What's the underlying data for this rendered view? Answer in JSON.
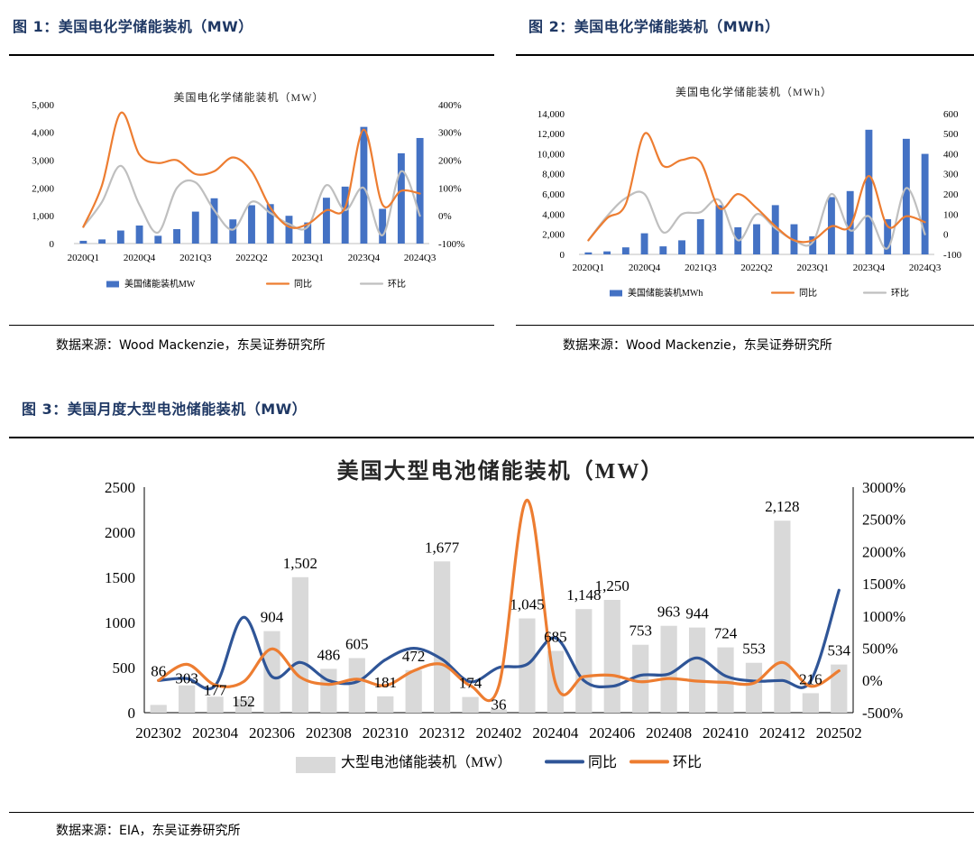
{
  "figures": [
    {
      "title": "图 1：美国电化学储能装机（MW）",
      "source": "数据来源：Wood Mackenzie，东吴证券研究所"
    },
    {
      "title": "图 2：美国电化学储能装机（MWh）",
      "source": "数据来源：Wood Mackenzie，东吴证券研究所"
    },
    {
      "title": "图 3：美国月度大型电池储能装机（MW）",
      "source": "数据来源：EIA，东吴证券研究所"
    }
  ],
  "chart_data": [
    {
      "type": "bar",
      "title": "美国电化学储能装机（MW）",
      "categories": [
        "2020Q1",
        "2020Q2",
        "2020Q3",
        "2020Q4",
        "2021Q1",
        "2021Q2",
        "2021Q3",
        "2021Q4",
        "2022Q1",
        "2022Q2",
        "2022Q3",
        "2022Q4",
        "2023Q1",
        "2023Q2",
        "2023Q3",
        "2023Q4",
        "2024Q1",
        "2024Q2",
        "2024Q3"
      ],
      "x_tick_labels": [
        "2020Q1",
        "2020Q4",
        "2021Q3",
        "2022Q2",
        "2023Q1",
        "2023Q4",
        "2024Q3"
      ],
      "y_ticks_left": [
        "0",
        "1,000",
        "2,000",
        "3,000",
        "4,000",
        "5,000"
      ],
      "y_ticks_right": [
        "-100%",
        "0%",
        "100%",
        "200%",
        "300%",
        "400%"
      ],
      "ylim_left": [
        0,
        5000
      ],
      "ylim_right": [
        -100,
        400
      ],
      "legend_position": "bottom",
      "colors": {
        "bar": "#4472c4",
        "yoy": "#ed7d31",
        "qoq": "#bfbfbf"
      },
      "series": [
        {
          "name": "美国储能装机MW",
          "kind": "bar",
          "axis": "left",
          "values": [
            100,
            150,
            470,
            650,
            280,
            520,
            1150,
            1630,
            870,
            1380,
            1420,
            1000,
            760,
            1650,
            2050,
            4200,
            1250,
            3250,
            3800
          ]
        },
        {
          "name": "同比",
          "kind": "line",
          "axis": "right",
          "values": [
            -40,
            110,
            370,
            220,
            190,
            200,
            150,
            160,
            210,
            160,
            30,
            -40,
            -30,
            20,
            30,
            310,
            40,
            90,
            80
          ]
        },
        {
          "name": "环比",
          "kind": "line",
          "axis": "right",
          "values": [
            -40,
            50,
            180,
            40,
            -60,
            100,
            120,
            20,
            -50,
            50,
            10,
            -30,
            -40,
            110,
            20,
            100,
            -70,
            160,
            0
          ]
        }
      ]
    },
    {
      "type": "bar",
      "title": "美国电化学储能装机（MWh）",
      "categories": [
        "2020Q1",
        "2020Q2",
        "2020Q3",
        "2020Q4",
        "2021Q1",
        "2021Q2",
        "2021Q3",
        "2021Q4",
        "2022Q1",
        "2022Q2",
        "2022Q3",
        "2022Q4",
        "2023Q1",
        "2023Q2",
        "2023Q3",
        "2023Q4",
        "2024Q1",
        "2024Q2",
        "2024Q3"
      ],
      "x_tick_labels": [
        "2020Q1",
        "2020Q4",
        "2021Q3",
        "2022Q2",
        "2023Q1",
        "2023Q4",
        "2024Q3"
      ],
      "y_ticks_left": [
        "0",
        "2,000",
        "4,000",
        "6,000",
        "8,000",
        "10,000",
        "12,000",
        "14,000"
      ],
      "y_ticks_right": [
        "-100",
        "0",
        "100",
        "200",
        "300",
        "400",
        "500",
        "600"
      ],
      "ylim_left": [
        0,
        14000
      ],
      "ylim_right": [
        -100,
        600
      ],
      "legend_position": "bottom",
      "colors": {
        "bar": "#4472c4",
        "yoy": "#ed7d31",
        "qoq": "#bfbfbf"
      },
      "series": [
        {
          "name": "美国储能装机MWh",
          "kind": "bar",
          "axis": "left",
          "values": [
            200,
            300,
            700,
            2100,
            800,
            1400,
            3500,
            4900,
            2700,
            3000,
            4900,
            3000,
            1800,
            5700,
            6300,
            12400,
            3500,
            11500,
            10000
          ]
        },
        {
          "name": "同比",
          "kind": "line",
          "axis": "right",
          "values": [
            -30,
            80,
            150,
            500,
            340,
            370,
            360,
            130,
            200,
            130,
            40,
            -30,
            -30,
            40,
            40,
            290,
            40,
            90,
            60
          ]
        },
        {
          "name": "环比",
          "kind": "line",
          "axis": "right",
          "values": [
            -30,
            90,
            180,
            200,
            10,
            100,
            110,
            170,
            -30,
            100,
            30,
            -30,
            -40,
            200,
            20,
            90,
            -70,
            230,
            0
          ]
        }
      ]
    },
    {
      "type": "bar",
      "title": "美国大型电池储能装机（MW）",
      "categories": [
        "202302",
        "202303",
        "202304",
        "202305",
        "202306",
        "202307",
        "202308",
        "202309",
        "202310",
        "202311",
        "202312",
        "202401",
        "202402",
        "202403",
        "202404",
        "202405",
        "202406",
        "202407",
        "202408",
        "202409",
        "202410",
        "202411",
        "202412",
        "202501",
        "202502"
      ],
      "x_tick_labels": [
        "202302",
        "202304",
        "202306",
        "202308",
        "202310",
        "202312",
        "202402",
        "202404",
        "202406",
        "202408",
        "202410",
        "202412",
        "202502"
      ],
      "y_ticks_left": [
        "0",
        "500",
        "1000",
        "1500",
        "2000",
        "2500"
      ],
      "y_ticks_right": [
        "-500%",
        "0%",
        "500%",
        "1000%",
        "1500%",
        "2000%",
        "2500%",
        "3000%"
      ],
      "ylim_left": [
        0,
        2500
      ],
      "ylim_right": [
        -500,
        3000
      ],
      "legend_position": "bottom",
      "colors": {
        "bar": "#d9d9d9",
        "yoy": "#2f5597",
        "qoq": "#ed7d31"
      },
      "series": [
        {
          "name": "大型电池储能装机（MW）",
          "kind": "bar",
          "axis": "left",
          "values": [
            86,
            303,
            177,
            152,
            904,
            1502,
            486,
            605,
            181,
            472,
            1677,
            174,
            36,
            1045,
            685,
            1148,
            1250,
            753,
            963,
            944,
            724,
            553,
            2128,
            216,
            534
          ]
        },
        {
          "name": "同比",
          "kind": "line",
          "axis": "right",
          "values": [
            0,
            30,
            -80,
            980,
            60,
            280,
            0,
            -20,
            320,
            500,
            330,
            -20,
            200,
            250,
            660,
            0,
            -90,
            80,
            100,
            350,
            70,
            -10,
            0,
            -10,
            1400
          ]
        },
        {
          "name": "环比",
          "kind": "line",
          "axis": "right",
          "values": [
            0,
            250,
            -70,
            -20,
            490,
            50,
            -60,
            20,
            -80,
            150,
            250,
            -80,
            -90,
            2800,
            -40,
            60,
            80,
            -20,
            30,
            -10,
            -30,
            -40,
            280,
            -90,
            150
          ]
        }
      ],
      "data_labels": [
        "86",
        "303",
        "177",
        "152",
        "904",
        "1,502",
        "486",
        "605",
        "181",
        "472",
        "1,677",
        "174",
        "36",
        "1,045",
        "685",
        "1,148",
        "1,250",
        "753",
        "963",
        "944",
        "724",
        "553",
        "2,128",
        "216",
        "534"
      ]
    }
  ]
}
